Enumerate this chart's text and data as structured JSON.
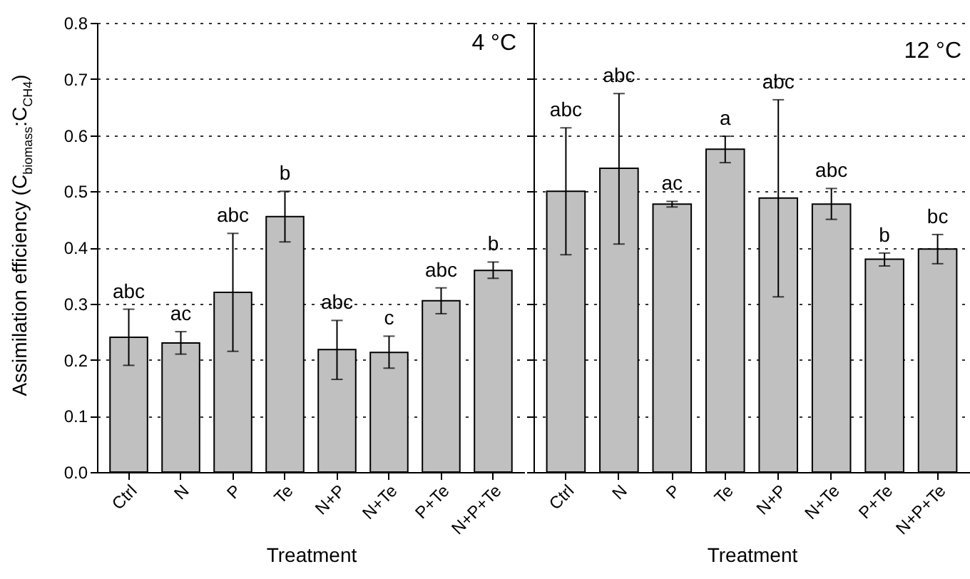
{
  "chart_data": [
    {
      "type": "bar",
      "title": "4 °C",
      "xlabel": "Treatment",
      "ylabel": "Assimilation efficiency (C$_{biomass}$:C$_{CH4}$)",
      "categories": [
        "Ctrl",
        "N",
        "P",
        "Te",
        "N+P",
        "N+Te",
        "P+Te",
        "N+P+Te"
      ],
      "color": "#c0c0c0",
      "values": [
        0.24,
        0.23,
        0.32,
        0.455,
        0.218,
        0.213,
        0.305,
        0.359
      ],
      "errors": [
        [
          0.19,
          0.29
        ],
        [
          0.21,
          0.25
        ],
        [
          0.215,
          0.425
        ],
        [
          0.41,
          0.5
        ],
        [
          0.165,
          0.27
        ],
        [
          0.185,
          0.242
        ],
        [
          0.282,
          0.328
        ],
        [
          0.345,
          0.374
        ]
      ],
      "ylim": [
        0,
        0.8
      ],
      "yticks": [
        {
          "value": 0,
          "label": "0.0"
        },
        0.1,
        0.2,
        0.3,
        0.4,
        0.5,
        0.6,
        0.7,
        0.8
      ],
      "grid": "y",
      "annotations": [
        {
          "text": "abc",
          "x": "Ctrl",
          "y": 0.29
        },
        {
          "text": "ac",
          "x": "N",
          "y": 0.25
        },
        {
          "text": "abc",
          "x": "P",
          "y": 0.425
        },
        {
          "text": "b",
          "x": "Te",
          "y": 0.5
        },
        {
          "text": "abc",
          "x": "N+P",
          "y": 0.27
        },
        {
          "text": "c",
          "x": "N+Te",
          "y": 0.242
        },
        {
          "text": "abc",
          "x": "P+Te",
          "y": 0.328
        },
        {
          "text": "b",
          "x": "N+P+Te",
          "y": 0.374
        }
      ]
    },
    {
      "type": "bar",
      "title": "12 °C",
      "xlabel": "Treatment",
      "categories": [
        "Ctrl",
        "N",
        "P",
        "Te",
        "N+P",
        "N+Te",
        "P+Te",
        "N+P+Te"
      ],
      "color": "#c0c0c0",
      "values": [
        0.5,
        0.541,
        0.477,
        0.575,
        0.488,
        0.477,
        0.379,
        0.397
      ],
      "errors": [
        [
          0.387,
          0.613
        ],
        [
          0.406,
          0.674
        ],
        [
          0.472,
          0.482
        ],
        [
          0.551,
          0.598
        ],
        [
          0.312,
          0.663
        ],
        [
          0.45,
          0.505
        ],
        [
          0.367,
          0.39
        ],
        [
          0.371,
          0.423
        ]
      ],
      "ylim": [
        0,
        0.8
      ],
      "yticks": [
        0,
        0.1,
        0.2,
        0.3,
        0.4,
        0.5,
        0.6,
        0.7,
        0.8
      ],
      "grid": "y",
      "tick_labels": "x",
      "annotations": [
        {
          "text": "abc",
          "x": "Ctrl",
          "y": 0.613
        },
        {
          "text": "abc",
          "x": "N",
          "y": 0.674
        },
        {
          "text": "ac",
          "x": "P",
          "y": 0.482
        },
        {
          "text": "a",
          "x": "Te",
          "y": 0.598
        },
        {
          "text": "abc",
          "x": "N+P",
          "y": 0.663
        },
        {
          "text": "abc",
          "x": "N+Te",
          "y": 0.505
        },
        {
          "text": "b",
          "x": "P+Te",
          "y": 0.39
        },
        {
          "text": "bc",
          "x": "N+P+Te",
          "y": 0.423
        }
      ]
    }
  ]
}
